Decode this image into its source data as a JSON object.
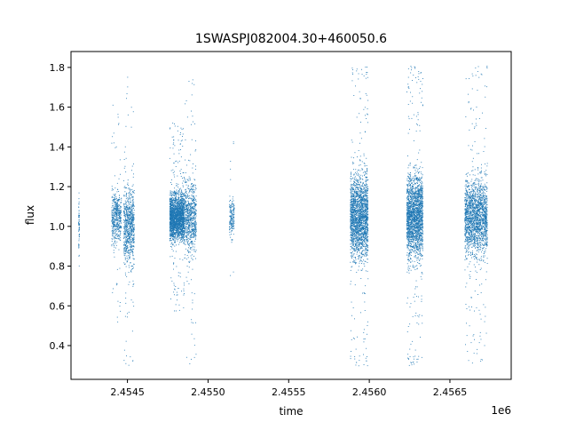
{
  "chart_data": {
    "type": "scatter",
    "title": "1SWASPJ082004.30+460050.6",
    "xlabel": "time",
    "ylabel": "flux",
    "x_offset_label": "1e6",
    "x_unit_scale": 1000000,
    "xlim": [
      2454150,
      2456880
    ],
    "ylim": [
      0.23,
      1.88
    ],
    "x_ticks": [
      2454500,
      2455000,
      2455500,
      2456000,
      2456500
    ],
    "x_tick_labels": [
      "2.4545",
      "2.4550",
      "2.4555",
      "2.4560",
      "2.4565"
    ],
    "y_ticks": [
      0.4,
      0.6,
      0.8,
      1.0,
      1.2,
      1.4,
      1.6,
      1.8
    ],
    "y_tick_labels": [
      "0.4",
      "0.6",
      "0.8",
      "1.0",
      "1.2",
      "1.4",
      "1.6",
      "1.8"
    ],
    "grid": false,
    "marker_color": "#1f77b4",
    "seasons": [
      {
        "x_range": [
          2454195,
          2454200
        ],
        "y_center": 1.0,
        "spread": 0.35,
        "count": 60
      },
      {
        "x_range": [
          2454400,
          2454460
        ],
        "y_center": 1.05,
        "spread": 0.3,
        "count": 500
      },
      {
        "x_range": [
          2454475,
          2454540
        ],
        "y_center": 1.0,
        "spread": 0.42,
        "count": 800
      },
      {
        "x_range": [
          2454760,
          2454850
        ],
        "y_center": 1.05,
        "spread": 0.25,
        "count": 2200
      },
      {
        "x_range": [
          2454850,
          2454925
        ],
        "y_center": 1.05,
        "spread": 0.4,
        "count": 800
      },
      {
        "x_range": [
          2455130,
          2455160
        ],
        "y_center": 1.05,
        "spread": 0.2,
        "count": 180
      },
      {
        "x_range": [
          2455880,
          2455990
        ],
        "y_center": 1.05,
        "spread": 0.45,
        "count": 2200
      },
      {
        "x_range": [
          2456230,
          2456330
        ],
        "y_center": 1.05,
        "spread": 0.45,
        "count": 2200
      },
      {
        "x_range": [
          2456590,
          2456730
        ],
        "y_center": 1.05,
        "spread": 0.4,
        "count": 2000
      }
    ]
  }
}
